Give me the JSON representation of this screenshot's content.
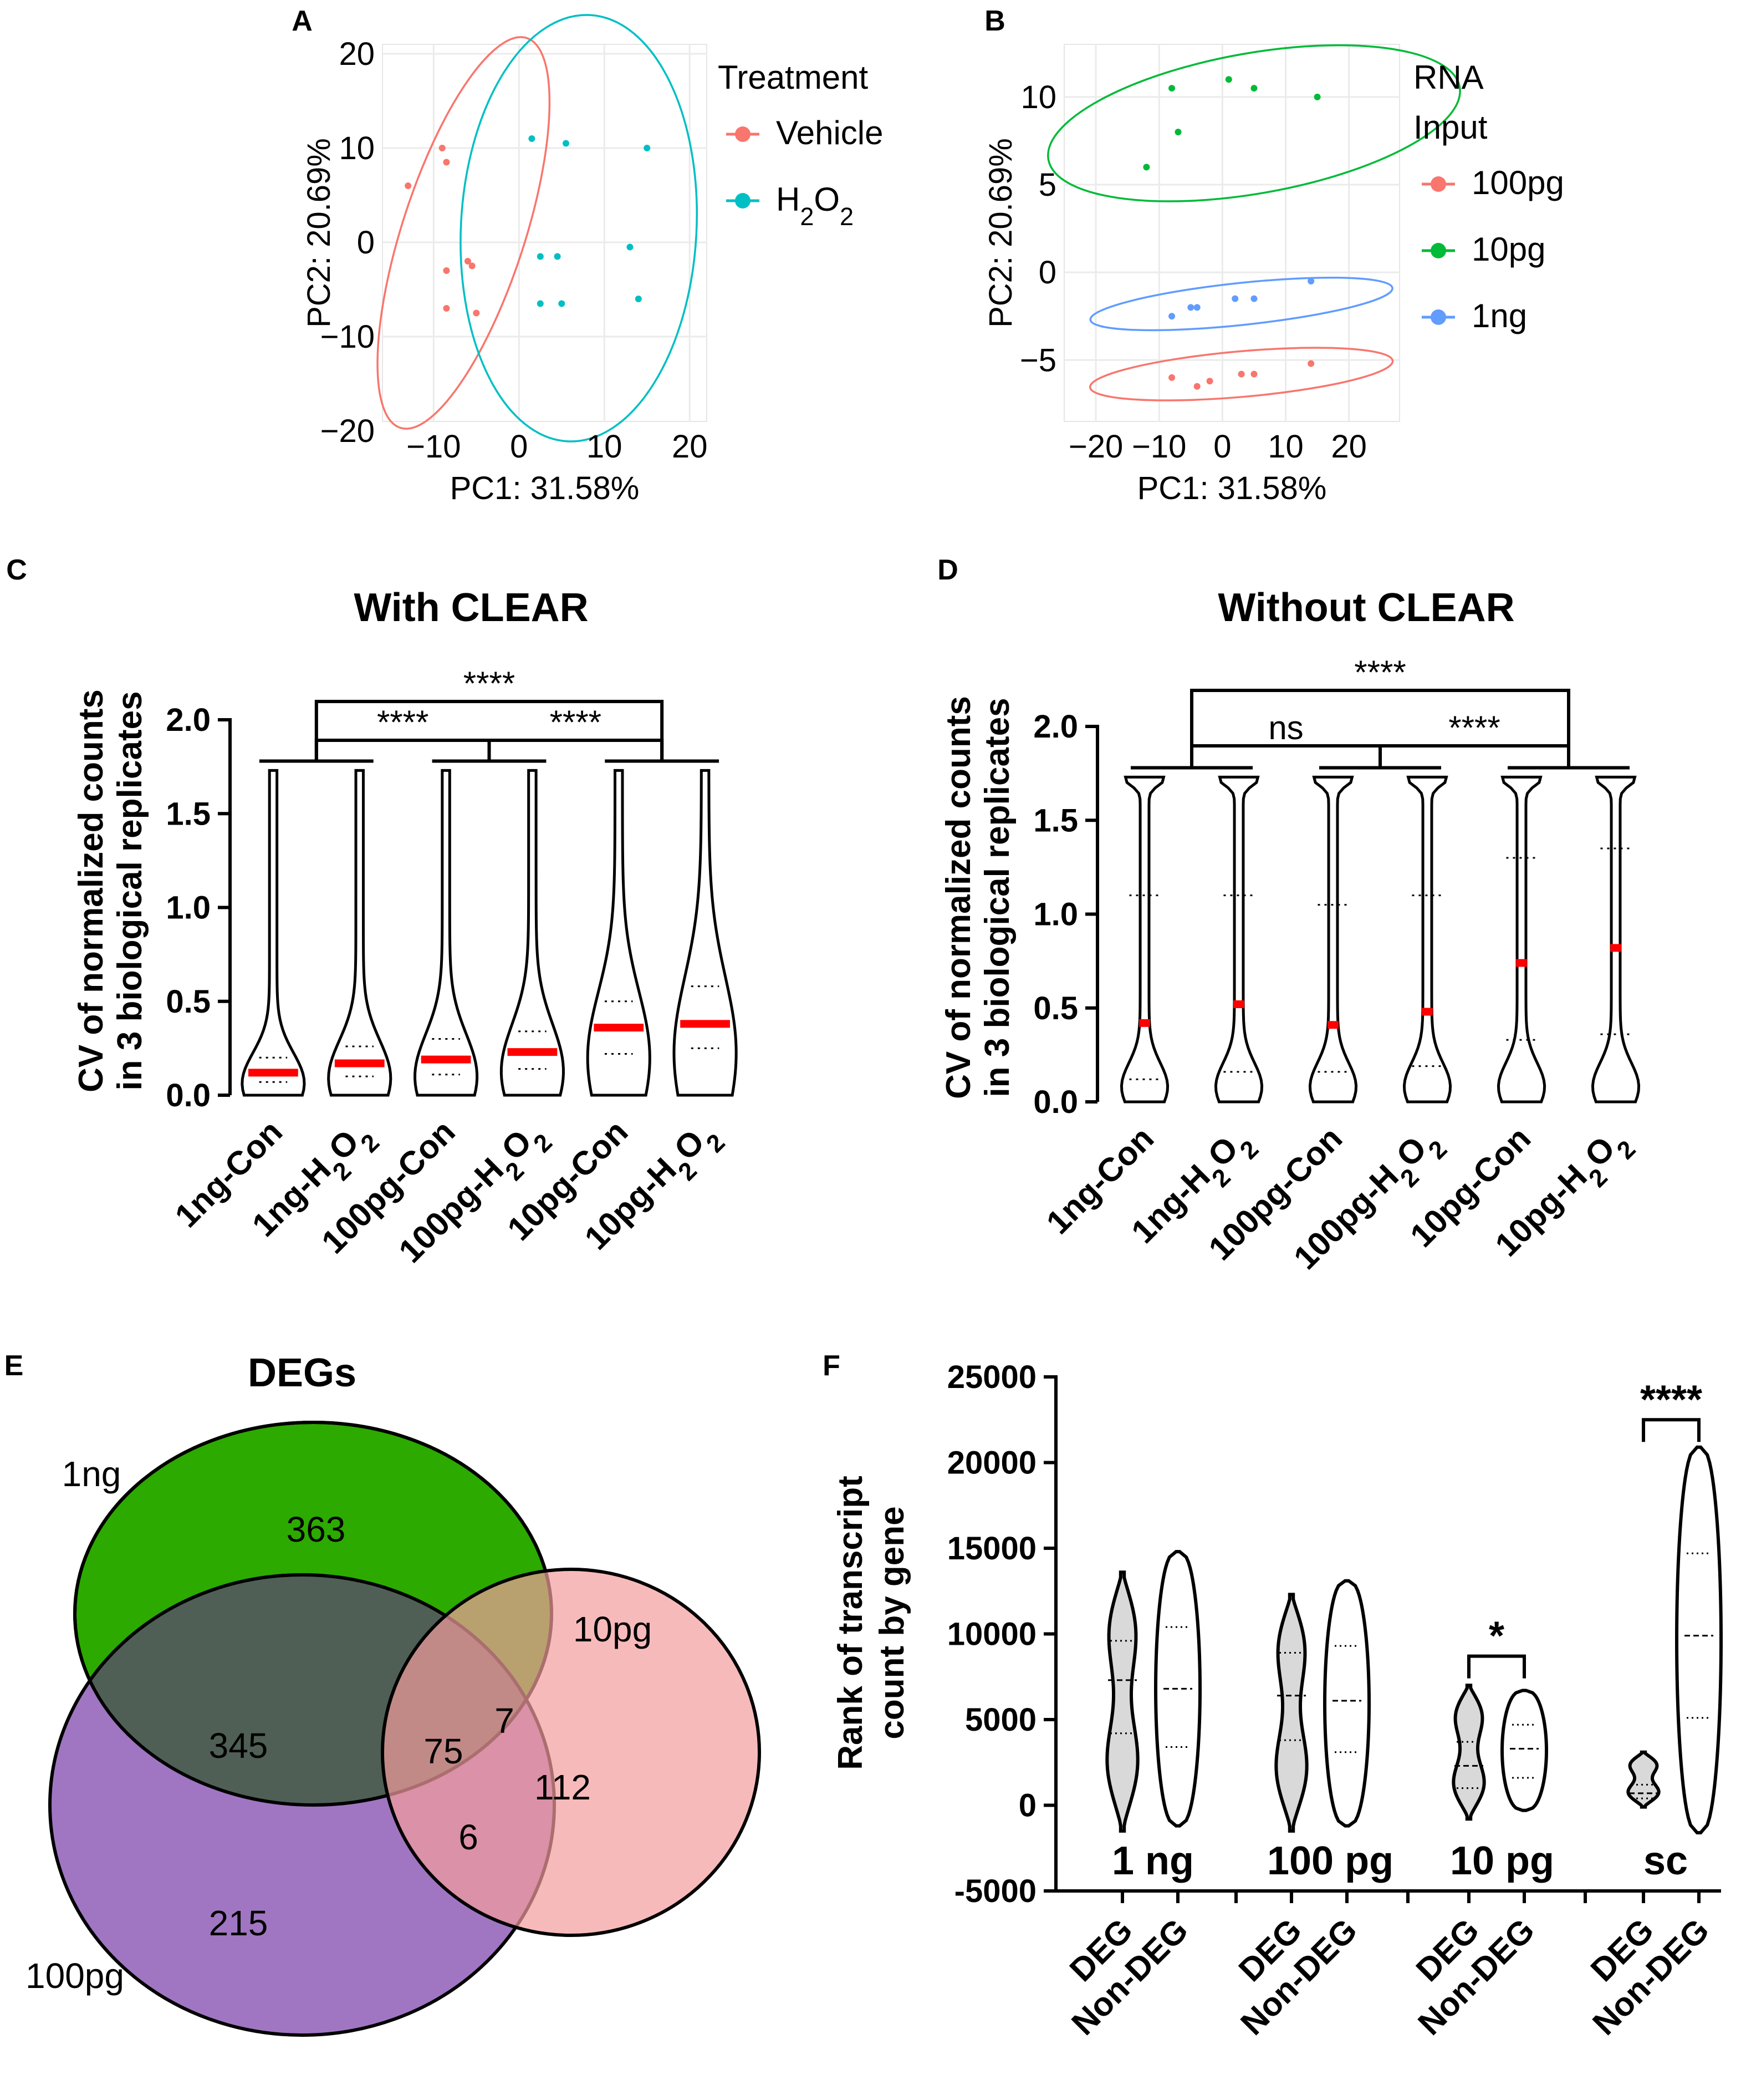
{
  "panels": {
    "A": {
      "letter": "A",
      "chart_data": {
        "type": "scatter",
        "xlabel": "PC1: 31.58%",
        "ylabel": "PC2: 20.69%",
        "xlim": [
          -16,
          22
        ],
        "ylim": [
          -19,
          21
        ],
        "xticks": [
          -10,
          0,
          10,
          20
        ],
        "yticks": [
          20,
          10,
          0,
          -10,
          -20
        ],
        "grid": true,
        "legend_title": "Treatment",
        "legend_position": "right",
        "series": [
          {
            "name": "Vehicle",
            "color": "#F8766D",
            "points": [
              [
                -9,
                10
              ],
              [
                -8.5,
                8.5
              ],
              [
                -13,
                6
              ],
              [
                -6,
                -2
              ],
              [
                -5.5,
                -2.5
              ],
              [
                -8.5,
                -3
              ],
              [
                -8.5,
                -7
              ],
              [
                -5,
                -7.5
              ]
            ],
            "ellipse": {
              "cx": -6.5,
              "cy": 1,
              "rx": 24,
              "ry": 6.5,
              "angle_deg": 72
            }
          },
          {
            "name": "H₂O₂",
            "color": "#00BFC4",
            "points": [
              [
                1.5,
                11
              ],
              [
                5.5,
                10.5
              ],
              [
                15,
                10
              ],
              [
                13,
                -0.5
              ],
              [
                2.5,
                -1.5
              ],
              [
                4.5,
                -1.5
              ],
              [
                2.5,
                -6.5
              ],
              [
                5,
                -6.5
              ],
              [
                14,
                -6
              ]
            ],
            "ellipse": {
              "cx": 7,
              "cy": 1.5,
              "rx": 25,
              "ry": 12.5,
              "angle_deg": 87
            }
          }
        ]
      }
    },
    "B": {
      "letter": "B",
      "chart_data": {
        "type": "scatter",
        "xlabel": "PC1: 31.58%",
        "ylabel": "PC2: 20.69%",
        "xlim": [
          -25,
          28
        ],
        "ylim": [
          -8.5,
          13
        ],
        "xticks": [
          -20,
          -10,
          0,
          10,
          20
        ],
        "yticks": [
          10,
          5,
          0,
          -5
        ],
        "grid": true,
        "legend_title": "RNA Input",
        "legend_position": "right",
        "series": [
          {
            "name": "100pg",
            "color": "#F8766D",
            "points": [
              [
                -8,
                -6
              ],
              [
                -4,
                -6.5
              ],
              [
                3,
                -5.8
              ],
              [
                5,
                -5.8
              ],
              [
                14,
                -5.2
              ],
              [
                -2,
                -6.2
              ]
            ],
            "ellipse": {
              "cx": 3,
              "cy": -5.8,
              "rx": 24,
              "ry": 1.3,
              "angle_deg": 5
            }
          },
          {
            "name": "10pg",
            "color": "#00BA38",
            "points": [
              [
                -8,
                10.5
              ],
              [
                1,
                11
              ],
              [
                5,
                10.5
              ],
              [
                15,
                10
              ],
              [
                -12,
                6
              ],
              [
                -7,
                8
              ]
            ],
            "ellipse": {
              "cx": 5,
              "cy": 8.5,
              "rx": 33,
              "ry": 4,
              "angle_deg": 10
            }
          },
          {
            "name": "1ng",
            "color": "#619CFF",
            "points": [
              [
                -5,
                -2
              ],
              [
                -4,
                -2
              ],
              [
                2,
                -1.5
              ],
              [
                5,
                -1.5
              ],
              [
                14,
                -0.5
              ],
              [
                -8,
                -2.5
              ]
            ],
            "ellipse": {
              "cx": 3,
              "cy": -1.8,
              "rx": 24,
              "ry": 1.2,
              "angle_deg": 6
            }
          }
        ]
      }
    },
    "C": {
      "letter": "C",
      "chart_data": {
        "type": "violin",
        "title": "With CLEAR",
        "ylabel_line1": "CV of normalized counts",
        "ylabel_line2": "in 3 biological replicates",
        "ylim": [
          0,
          2.0
        ],
        "yticks": [
          "0.0",
          "0.5",
          "1.0",
          "1.5",
          "2.0"
        ],
        "categories": [
          "1ng-Con",
          "1ng-H₂O₂",
          "100pg-Con",
          "100pg-H₂O₂",
          "10pg-Con",
          "10pg-H₂O₂"
        ],
        "medians": [
          0.12,
          0.17,
          0.19,
          0.23,
          0.36,
          0.38
        ],
        "quartile_low": [
          0.07,
          0.1,
          0.11,
          0.14,
          0.22,
          0.25
        ],
        "quartile_high": [
          0.2,
          0.26,
          0.3,
          0.34,
          0.5,
          0.58
        ],
        "max": [
          1.73,
          1.73,
          1.73,
          1.73,
          1.73,
          1.73
        ],
        "significance": [
          {
            "label": "****",
            "from": [
              0,
              1
            ],
            "to": [
              2,
              3
            ]
          },
          {
            "label": "****",
            "from": [
              2,
              3
            ],
            "to": [
              4,
              5
            ]
          },
          {
            "label": "****",
            "from": [
              0,
              1
            ],
            "to": [
              4,
              5
            ]
          }
        ]
      }
    },
    "D": {
      "letter": "D",
      "chart_data": {
        "type": "violin",
        "title": "Without CLEAR",
        "ylabel_line1": "CV of normalized counts",
        "ylabel_line2": "in 3 biological replicates",
        "ylim": [
          0,
          2.0
        ],
        "yticks": [
          "0.0",
          "0.5",
          "1.0",
          "1.5",
          "2.0"
        ],
        "categories": [
          "1ng-Con",
          "1ng-H₂O₂",
          "100pg-Con",
          "100pg-H₂O₂",
          "10pg-Con",
          "10pg-H₂O₂"
        ],
        "medians": [
          0.42,
          0.52,
          0.41,
          0.48,
          0.74,
          0.82
        ],
        "quartile_low": [
          0.12,
          0.16,
          0.16,
          0.19,
          0.33,
          0.36
        ],
        "quartile_high": [
          1.1,
          1.1,
          1.05,
          1.1,
          1.3,
          1.35
        ],
        "max": [
          1.73,
          1.73,
          1.73,
          1.73,
          1.73,
          1.73
        ],
        "significance": [
          {
            "label": "ns",
            "from": [
              0,
              1
            ],
            "to": [
              2,
              3
            ]
          },
          {
            "label": "****",
            "from": [
              2,
              3
            ],
            "to": [
              4,
              5
            ]
          },
          {
            "label": "****",
            "from": [
              0,
              1
            ],
            "to": [
              4,
              5
            ]
          }
        ]
      }
    },
    "E": {
      "letter": "E",
      "title": "DEGs",
      "sets": [
        {
          "name": "1ng",
          "color": "#2CAA00"
        },
        {
          "name": "10pg",
          "color": "#F39C9C"
        },
        {
          "name": "100pg",
          "color": "#9B6FBF"
        }
      ],
      "regions": [
        {
          "label": "1ng only",
          "value": "363"
        },
        {
          "label": "1ng & 100pg",
          "value": "345"
        },
        {
          "label": "all three",
          "value": "75"
        },
        {
          "label": "1ng & 10pg",
          "value": "7"
        },
        {
          "label": "10pg only",
          "value": "112"
        },
        {
          "label": "100pg & 10pg",
          "value": "6"
        },
        {
          "label": "100pg only",
          "value": "215"
        }
      ]
    },
    "F": {
      "letter": "F",
      "chart_data": {
        "type": "violin",
        "ylabel_line1": "Rank of transcript",
        "ylabel_line2": "count by gene",
        "ylim": [
          -5000,
          25000
        ],
        "yticks": [
          "-5000",
          "0",
          "5000",
          "10000",
          "15000",
          "20000",
          "25000"
        ],
        "groups": [
          "1 ng",
          "100 pg",
          "10 pg",
          "sc"
        ],
        "categories": [
          "DEG",
          "Non-DEG",
          "DEG",
          "Non-DEG",
          "DEG",
          "Non-DEG",
          "DEG",
          "Non-DEG"
        ],
        "min": [
          -1500,
          -1200,
          -1500,
          -1200,
          -800,
          -300,
          -100,
          -1600
        ],
        "max": [
          13600,
          14800,
          12300,
          13100,
          7000,
          6700,
          3100,
          20900
        ],
        "medians": [
          7300,
          6800,
          6400,
          6100,
          2300,
          3300,
          700,
          9900
        ],
        "quartile_low": [
          4200,
          3400,
          3800,
          3100,
          1000,
          1600,
          400,
          5100
        ],
        "quartile_high": [
          9600,
          10400,
          8900,
          9300,
          3700,
          4700,
          1200,
          14700
        ],
        "significance": [
          {
            "label": "*",
            "pair": [
              4,
              5
            ]
          },
          {
            "label": "****",
            "pair": [
              6,
              7
            ]
          }
        ]
      }
    }
  }
}
